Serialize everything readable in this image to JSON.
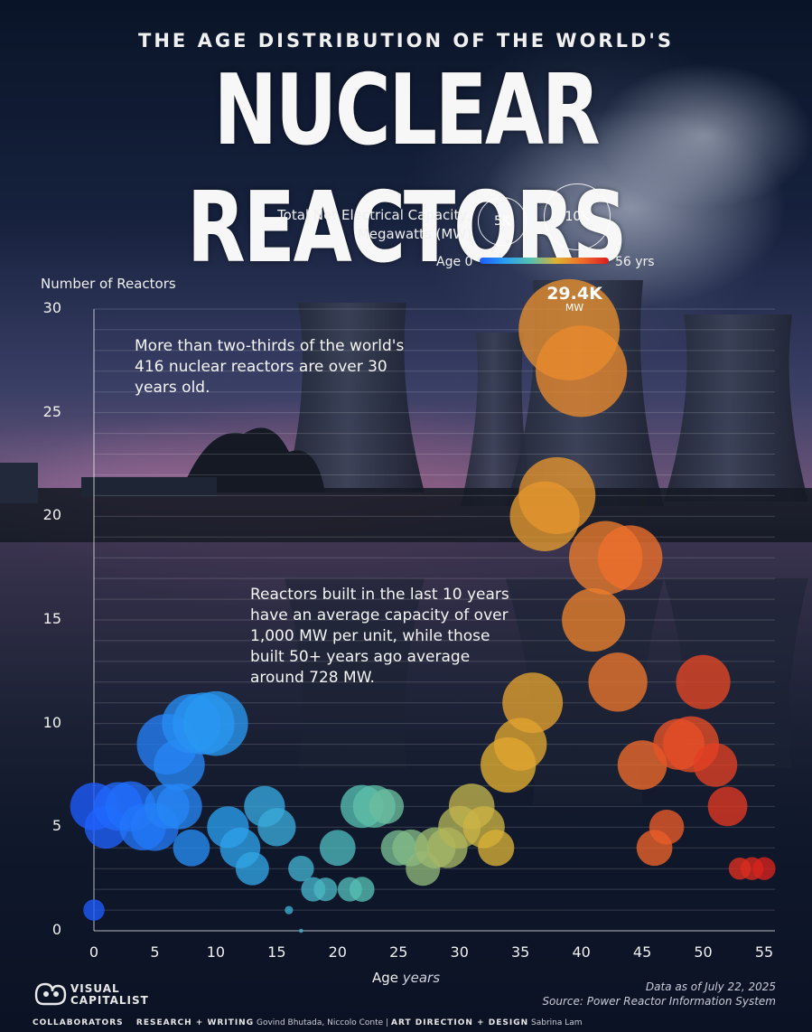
{
  "header": {
    "subtitle": "THE AGE DISTRIBUTION OF THE WORLD'S",
    "title": "NUCLEAR REACTORS"
  },
  "legend": {
    "size_title": "Total Net Electrical Capacity, Megawatts (MW)",
    "size_small": "5K",
    "size_large": "10K",
    "color_start": "Age 0",
    "color_end": "56 yrs"
  },
  "annotations": {
    "two_thirds": "More than two-thirds of the world's 416 nuclear reactors are over 30 years old.",
    "capacity": "Reactors built in the last 10 years have an average capacity of over 1,000 MW per unit, while those built 50+ years ago average around 728 MW.",
    "peak_value": "29.4K",
    "peak_unit": "MW"
  },
  "footer": {
    "data_note": "Data as of July 22, 2025",
    "source": "Source: Power Reactor Information System",
    "brand_line1": "VISUAL",
    "brand_line2": "CAPITALIST",
    "collaborators_label": "COLLABORATORS",
    "research_label": "RESEARCH + WRITING",
    "research_names": "Govind Bhutada, Niccolo Conte",
    "separator": "|",
    "design_label": "ART DIRECTION + DESIGN",
    "design_names": "Sabrina Lam"
  },
  "colors": {
    "age_scale": [
      "#1e5cff",
      "#2aa0f0",
      "#58c0b0",
      "#e0b030",
      "#f06b2c",
      "#d81c1c"
    ]
  },
  "chart_data": {
    "type": "scatter",
    "encoding": "bubble",
    "xlabel": "Age",
    "xlabel_unit": "years",
    "ylabel": "Number of Reactors",
    "xlim": [
      0,
      55
    ],
    "ylim": [
      0,
      30
    ],
    "xticks": [
      0,
      5,
      10,
      15,
      20,
      25,
      30,
      35,
      40,
      45,
      50,
      55
    ],
    "yticks": [
      0,
      5,
      10,
      15,
      20,
      25,
      30
    ],
    "grid": true,
    "points": [
      {
        "age": 0,
        "count": 1,
        "capacity_mw": 1300
      },
      {
        "age": 0,
        "count": 6,
        "capacity_mw": 6500
      },
      {
        "age": 1,
        "count": 5,
        "capacity_mw": 5300
      },
      {
        "age": 2,
        "count": 6,
        "capacity_mw": 6800
      },
      {
        "age": 3,
        "count": 6,
        "capacity_mw": 7200
      },
      {
        "age": 4,
        "count": 5,
        "capacity_mw": 6200
      },
      {
        "age": 5,
        "count": 5,
        "capacity_mw": 6500
      },
      {
        "age": 6,
        "count": 6,
        "capacity_mw": 5800
      },
      {
        "age": 6,
        "count": 9,
        "capacity_mw": 10500
      },
      {
        "age": 7,
        "count": 6,
        "capacity_mw": 6000
      },
      {
        "age": 7,
        "count": 8,
        "capacity_mw": 7500
      },
      {
        "age": 8,
        "count": 4,
        "capacity_mw": 3900
      },
      {
        "age": 8,
        "count": 10,
        "capacity_mw": 10000
      },
      {
        "age": 9,
        "count": 10,
        "capacity_mw": 11000
      },
      {
        "age": 10,
        "count": 10,
        "capacity_mw": 12000
      },
      {
        "age": 11,
        "count": 5,
        "capacity_mw": 5000
      },
      {
        "age": 12,
        "count": 4,
        "capacity_mw": 4700
      },
      {
        "age": 13,
        "count": 3,
        "capacity_mw": 3200
      },
      {
        "age": 14,
        "count": 6,
        "capacity_mw": 4800
      },
      {
        "age": 15,
        "count": 5,
        "capacity_mw": 4200
      },
      {
        "age": 16,
        "count": 1,
        "capacity_mw": 200
      },
      {
        "age": 17,
        "count": 0,
        "capacity_mw": 50
      },
      {
        "age": 17,
        "count": 3,
        "capacity_mw": 1900
      },
      {
        "age": 18,
        "count": 2,
        "capacity_mw": 1700
      },
      {
        "age": 19,
        "count": 2,
        "capacity_mw": 1600
      },
      {
        "age": 20,
        "count": 4,
        "capacity_mw": 3700
      },
      {
        "age": 21,
        "count": 2,
        "capacity_mw": 1700
      },
      {
        "age": 22,
        "count": 2,
        "capacity_mw": 1800
      },
      {
        "age": 22,
        "count": 6,
        "capacity_mw": 5300
      },
      {
        "age": 23,
        "count": 6,
        "capacity_mw": 5200
      },
      {
        "age": 24,
        "count": 6,
        "capacity_mw": 3500
      },
      {
        "age": 25,
        "count": 4,
        "capacity_mw": 3600
      },
      {
        "age": 26,
        "count": 4,
        "capacity_mw": 3900
      },
      {
        "age": 27,
        "count": 3,
        "capacity_mw": 3400
      },
      {
        "age": 28,
        "count": 4,
        "capacity_mw": 4800
      },
      {
        "age": 29,
        "count": 4,
        "capacity_mw": 4700
      },
      {
        "age": 30,
        "count": 5,
        "capacity_mw": 5200
      },
      {
        "age": 31,
        "count": 6,
        "capacity_mw": 6000
      },
      {
        "age": 32,
        "count": 5,
        "capacity_mw": 5000
      },
      {
        "age": 33,
        "count": 4,
        "capacity_mw": 3800
      },
      {
        "age": 34,
        "count": 8,
        "capacity_mw": 8800
      },
      {
        "age": 35,
        "count": 9,
        "capacity_mw": 8000
      },
      {
        "age": 36,
        "count": 11,
        "capacity_mw": 10500
      },
      {
        "age": 37,
        "count": 20,
        "capacity_mw": 14000
      },
      {
        "age": 38,
        "count": 21,
        "capacity_mw": 17000
      },
      {
        "age": 39,
        "count": 29,
        "capacity_mw": 29400
      },
      {
        "age": 40,
        "count": 27,
        "capacity_mw": 24000
      },
      {
        "age": 41,
        "count": 15,
        "capacity_mw": 11500
      },
      {
        "age": 42,
        "count": 18,
        "capacity_mw": 15500
      },
      {
        "age": 43,
        "count": 12,
        "capacity_mw": 10000
      },
      {
        "age": 44,
        "count": 18,
        "capacity_mw": 12000
      },
      {
        "age": 45,
        "count": 8,
        "capacity_mw": 7000
      },
      {
        "age": 46,
        "count": 4,
        "capacity_mw": 3700
      },
      {
        "age": 47,
        "count": 5,
        "capacity_mw": 3500
      },
      {
        "age": 48,
        "count": 9,
        "capacity_mw": 7500
      },
      {
        "age": 49,
        "count": 9,
        "capacity_mw": 9000
      },
      {
        "age": 50,
        "count": 12,
        "capacity_mw": 8500
      },
      {
        "age": 51,
        "count": 8,
        "capacity_mw": 5500
      },
      {
        "age": 52,
        "count": 6,
        "capacity_mw": 4500
      },
      {
        "age": 53,
        "count": 3,
        "capacity_mw": 1400
      },
      {
        "age": 54,
        "count": 3,
        "capacity_mw": 1500
      },
      {
        "age": 55,
        "count": 3,
        "capacity_mw": 1500
      }
    ]
  }
}
